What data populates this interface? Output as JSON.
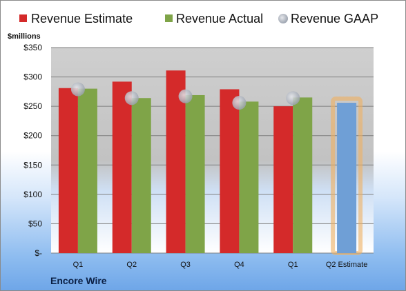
{
  "chart_data": {
    "type": "bar",
    "unit_label": "$millions",
    "company": "Encore Wire",
    "categories": [
      "Q1",
      "Q2",
      "Q3",
      "Q4",
      "Q1",
      "Q2 Estimate"
    ],
    "series": [
      {
        "name": "Revenue Estimate",
        "color": "#d42a2a",
        "values": [
          281,
          292,
          311,
          279,
          250,
          null
        ]
      },
      {
        "name": "Revenue Actual",
        "color": "#7fa448",
        "values": [
          280,
          264,
          269,
          258,
          265,
          null
        ]
      },
      {
        "name": "Revenue GAAP",
        "color": "#aab1bd",
        "marker": "circle",
        "values": [
          279,
          264,
          267,
          256,
          264,
          null
        ]
      }
    ],
    "q2_estimate": {
      "value": 256,
      "color": "#6f9fd6",
      "highlight_color": "#f0b060"
    },
    "ylim": [
      0,
      350
    ],
    "yticks": [
      0,
      50,
      100,
      150,
      200,
      250,
      300,
      350
    ],
    "ytick_labels": [
      "$-",
      "$50",
      "$100",
      "$150",
      "$200",
      "$250",
      "$300",
      "$350"
    ],
    "grid": true,
    "legend_position": "top"
  }
}
